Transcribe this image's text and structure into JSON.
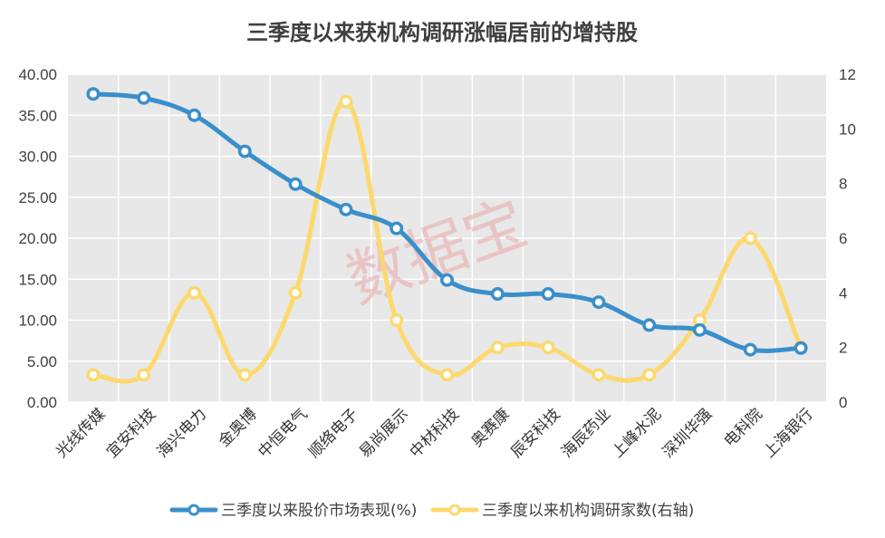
{
  "chart_data": {
    "type": "line",
    "title": "三季度以来获机构调研涨幅居前的增持股",
    "categories": [
      "光线传媒",
      "宜安科技",
      "海兴电力",
      "金奥博",
      "中恒电气",
      "顺络电子",
      "易尚展示",
      "中材科技",
      "奥赛康",
      "辰安科技",
      "海辰药业",
      "上峰水泥",
      "深圳华强",
      "电科院",
      "上海银行"
    ],
    "series": [
      {
        "name": "三季度以来股价市场表现(%)",
        "axis": "left",
        "color": "#3a8fcb",
        "values": [
          37.6,
          37.1,
          35.0,
          30.6,
          26.6,
          23.5,
          21.2,
          14.9,
          13.2,
          13.2,
          12.2,
          9.4,
          8.8,
          6.4,
          6.6
        ]
      },
      {
        "name": "三季度以来机构调研家数(右轴)",
        "axis": "right",
        "color": "#fcd96e",
        "values": [
          1,
          1,
          4,
          1,
          4,
          11,
          3,
          1,
          2,
          2,
          1,
          1,
          3,
          6,
          2
        ]
      }
    ],
    "y_left": {
      "min": 0,
      "max": 40,
      "step": 5,
      "ticks": [
        "0.00",
        "5.00",
        "10.00",
        "15.00",
        "20.00",
        "25.00",
        "30.00",
        "35.00",
        "40.00"
      ]
    },
    "y_right": {
      "min": 0,
      "max": 12,
      "step": 2,
      "ticks": [
        "0",
        "2",
        "4",
        "6",
        "8",
        "10",
        "12"
      ]
    },
    "grid": true,
    "legend_position": "bottom",
    "background": "#e8e8e8"
  },
  "watermark": "数据宝"
}
